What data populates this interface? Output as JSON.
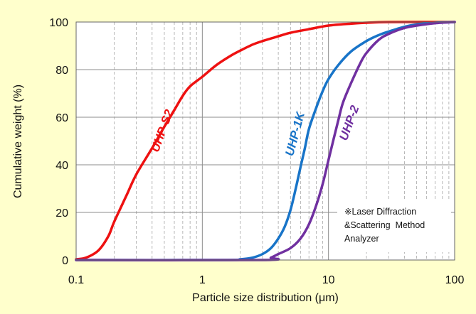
{
  "chart_data": {
    "type": "line",
    "xscale": "log",
    "xlim": [
      0.1,
      100
    ],
    "ylim": [
      0,
      100
    ],
    "xticks": [
      0.1,
      1,
      10,
      100
    ],
    "xtick_labels": [
      "0.1",
      "1",
      "10",
      "100"
    ],
    "yticks": [
      0,
      20,
      40,
      60,
      80,
      100
    ],
    "ytick_labels": [
      "0",
      "20",
      "40",
      "60",
      "80",
      "100"
    ],
    "xlabel": "Particle size distribution (μm)",
    "ylabel": "Cumulative weight (%)",
    "grid": true,
    "background_color": "#ffffcc",
    "plot_background_color": "#ffffff",
    "series": [
      {
        "name": "UHP-S2",
        "color": "#ee1111",
        "points": [
          [
            0.1,
            0.3
          ],
          [
            0.12,
            1
          ],
          [
            0.15,
            4
          ],
          [
            0.18,
            10
          ],
          [
            0.2,
            16
          ],
          [
            0.25,
            27
          ],
          [
            0.3,
            36
          ],
          [
            0.4,
            47
          ],
          [
            0.5,
            56
          ],
          [
            0.6,
            63
          ],
          [
            0.7,
            69
          ],
          [
            0.8,
            73
          ],
          [
            1,
            77
          ],
          [
            1.3,
            82
          ],
          [
            1.7,
            86
          ],
          [
            2,
            88
          ],
          [
            2.5,
            90.5
          ],
          [
            3,
            92
          ],
          [
            4,
            94
          ],
          [
            5,
            95.5
          ],
          [
            7,
            97
          ],
          [
            10,
            98.5
          ],
          [
            15,
            99.3
          ],
          [
            20,
            99.7
          ],
          [
            30,
            100
          ],
          [
            100,
            100
          ]
        ]
      },
      {
        "name": "UHP-1K",
        "color": "#1874c8",
        "points": [
          [
            0.1,
            0
          ],
          [
            1.5,
            0
          ],
          [
            2,
            0.3
          ],
          [
            2.5,
            1
          ],
          [
            3,
            2.5
          ],
          [
            3.5,
            5
          ],
          [
            4,
            9
          ],
          [
            4.5,
            14
          ],
          [
            5,
            21
          ],
          [
            5.5,
            30
          ],
          [
            6,
            39
          ],
          [
            6.5,
            47
          ],
          [
            7,
            55
          ],
          [
            8,
            64
          ],
          [
            9,
            71
          ],
          [
            10,
            76
          ],
          [
            12,
            82
          ],
          [
            15,
            87.5
          ],
          [
            20,
            92
          ],
          [
            25,
            94.5
          ],
          [
            30,
            96
          ],
          [
            40,
            98
          ],
          [
            50,
            99
          ],
          [
            70,
            99.7
          ],
          [
            100,
            100
          ]
        ]
      },
      {
        "name": "UHP-2",
        "color": "#7030a0",
        "points": [
          [
            0.1,
            0
          ],
          [
            3,
            0
          ],
          [
            3.5,
            1
          ],
          [
            4,
            2.5
          ],
          [
            5,
            5
          ],
          [
            6,
            9
          ],
          [
            7,
            15
          ],
          [
            8,
            23
          ],
          [
            9,
            32
          ],
          [
            10,
            42
          ],
          [
            11,
            51
          ],
          [
            12,
            59
          ],
          [
            13,
            66
          ],
          [
            15,
            74
          ],
          [
            18,
            83
          ],
          [
            20,
            87
          ],
          [
            25,
            92.5
          ],
          [
            30,
            95
          ],
          [
            40,
            97.5
          ],
          [
            50,
            98.5
          ],
          [
            70,
            99.5
          ],
          [
            100,
            100
          ]
        ]
      }
    ],
    "annotation": {
      "lines": [
        "※Laser Diffraction",
        "&Scattering  Method",
        "Analyzer"
      ]
    }
  }
}
